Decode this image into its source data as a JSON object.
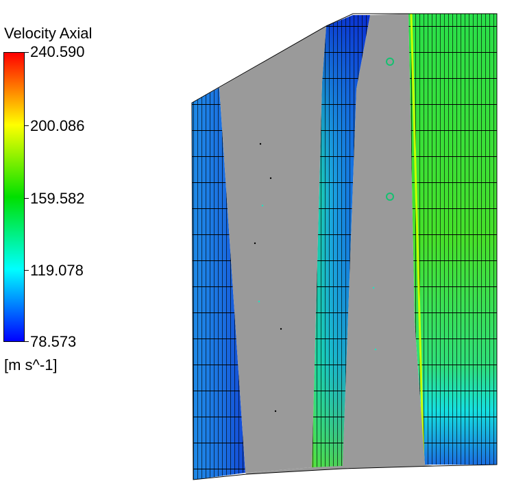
{
  "legend": {
    "title": "Velocity Axial",
    "units": "[m s^-1]",
    "ticks": [
      "240.590",
      "200.086",
      "159.582",
      "119.078",
      "78.573"
    ],
    "colors": [
      "#ff0000",
      "#ffff00",
      "#00e000",
      "#00ffff",
      "#0000ff"
    ]
  },
  "surface": {
    "blade_color": "#999999",
    "mesh_line_color": "#000000",
    "description_free": true
  }
}
